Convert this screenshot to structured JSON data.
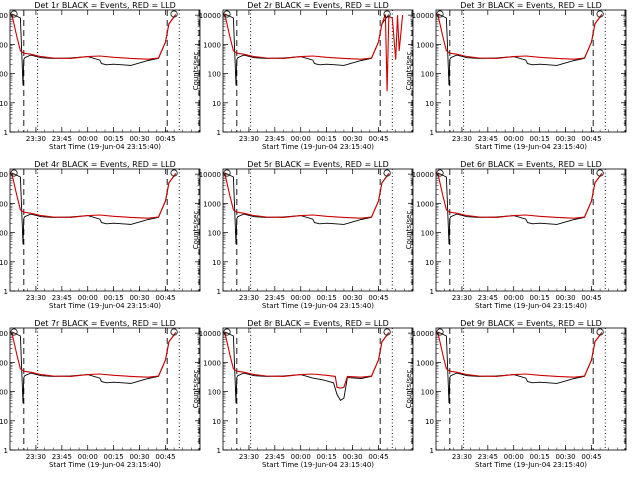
{
  "figure": {
    "xlabel": "Start Time (19-Jun-04 23:15:40)",
    "ylabel": "Counts/sec",
    "xtick_labels": [
      "23:30",
      "23:45",
      "00:00",
      "00:15",
      "00:30",
      "00:45"
    ],
    "ytick_labels": [
      "1",
      "10",
      "100",
      "1000",
      "10000"
    ],
    "colors": {
      "events": "#000000",
      "lld": "#cc0000",
      "background": "#ffffff"
    }
  },
  "chart_data": [
    {
      "type": "line",
      "title": "Det 1r BLACK = Events, RED = LLD",
      "xlabel": "Start Time (19-Jun-04 23:15:40)",
      "ylabel": "Counts/sec",
      "x_unit": "minutes since 23:15:40",
      "xlim": [
        0,
        110
      ],
      "ylim": [
        1,
        15000
      ],
      "y_scale": "log",
      "series": [
        {
          "name": "Events",
          "color": "#000000",
          "x": [
            1,
            6,
            7.5,
            8,
            8.5,
            12,
            18,
            25,
            35,
            45,
            52,
            53,
            56,
            60,
            65,
            70,
            80,
            86,
            90,
            92,
            96
          ],
          "y": [
            11000,
            8000,
            40,
            300,
            350,
            430,
            350,
            330,
            340,
            380,
            290,
            220,
            200,
            210,
            200,
            190,
            280,
            330,
            1200,
            5000,
            10500
          ]
        },
        {
          "name": "LLD",
          "color": "#cc0000",
          "x": [
            1,
            4,
            6,
            8,
            12,
            18,
            25,
            35,
            45,
            52,
            60,
            70,
            80,
            86,
            90,
            92,
            96
          ],
          "y": [
            11000,
            1800,
            600,
            500,
            460,
            380,
            340,
            330,
            380,
            400,
            360,
            330,
            310,
            340,
            1200,
            5000,
            10500
          ]
        }
      ],
      "vlines_dashed": [
        8,
        91,
        110
      ],
      "vlines_dotted": [
        16,
        98
      ]
    },
    {
      "type": "line",
      "title": "Det 2r BLACK = Events, RED = LLD",
      "xlabel": "Start Time (19-Jun-04 23:15:40)",
      "ylabel": "Counts/sec",
      "x_unit": "minutes since 23:15:40",
      "xlim": [
        0,
        110
      ],
      "ylim": [
        1,
        15000
      ],
      "y_scale": "log",
      "series": [
        {
          "name": "Events",
          "color": "#000000",
          "x": [
            1,
            6,
            7.5,
            8,
            8.5,
            12,
            18,
            25,
            35,
            45,
            52,
            53,
            56,
            60,
            65,
            70,
            80,
            86,
            90,
            92,
            96
          ],
          "y": [
            11000,
            8000,
            40,
            300,
            350,
            430,
            350,
            330,
            340,
            380,
            290,
            220,
            200,
            210,
            200,
            190,
            280,
            330,
            1200,
            5000,
            10500
          ]
        },
        {
          "name": "LLD",
          "color": "#cc0000",
          "x": [
            1,
            4,
            6,
            8,
            12,
            18,
            25,
            35,
            45,
            52,
            60,
            70,
            80,
            86,
            90,
            92,
            94,
            95,
            96,
            98,
            100,
            101,
            102,
            104
          ],
          "y": [
            11000,
            1800,
            600,
            500,
            460,
            380,
            340,
            330,
            380,
            400,
            360,
            330,
            310,
            340,
            1200,
            5000,
            10500,
            25,
            9000,
            8000,
            300,
            10000,
            600,
            10000
          ]
        }
      ],
      "vlines_dashed": [
        8,
        91,
        110
      ],
      "vlines_dotted": [
        16,
        98
      ]
    },
    {
      "type": "line",
      "title": "Det 3r BLACK = Events, RED = LLD",
      "xlabel": "Start Time (19-Jun-04 23:15:40)",
      "ylabel": "Counts/sec",
      "x_unit": "minutes since 23:15:40",
      "xlim": [
        0,
        110
      ],
      "ylim": [
        1,
        15000
      ],
      "y_scale": "log",
      "series": [
        {
          "name": "Events",
          "color": "#000000",
          "x": [
            1,
            6,
            7.5,
            8,
            8.5,
            12,
            18,
            25,
            35,
            45,
            52,
            53,
            56,
            60,
            65,
            70,
            80,
            86,
            90,
            92,
            96
          ],
          "y": [
            11000,
            8000,
            40,
            300,
            350,
            430,
            350,
            330,
            340,
            380,
            290,
            220,
            200,
            210,
            200,
            190,
            280,
            330,
            1200,
            5000,
            10500
          ]
        },
        {
          "name": "LLD",
          "color": "#cc0000",
          "x": [
            1,
            4,
            6,
            8,
            12,
            18,
            25,
            35,
            45,
            52,
            60,
            70,
            80,
            86,
            90,
            92,
            96
          ],
          "y": [
            11000,
            1800,
            600,
            500,
            460,
            380,
            340,
            330,
            380,
            400,
            360,
            330,
            310,
            340,
            1200,
            5000,
            10500
          ]
        }
      ],
      "vlines_dashed": [
        8,
        91,
        110
      ],
      "vlines_dotted": [
        16,
        98
      ]
    },
    {
      "type": "line",
      "title": "Det 4r BLACK = Events, RED = LLD",
      "xlabel": "Start Time (19-Jun-04 23:15:40)",
      "ylabel": "Counts/sec",
      "x_unit": "minutes since 23:15:40",
      "xlim": [
        0,
        110
      ],
      "ylim": [
        1,
        15000
      ],
      "y_scale": "log",
      "series": [
        {
          "name": "Events",
          "color": "#000000",
          "x": [
            1,
            6,
            7.5,
            8,
            8.5,
            12,
            18,
            25,
            35,
            45,
            52,
            53,
            56,
            60,
            65,
            70,
            80,
            86,
            90,
            92,
            96
          ],
          "y": [
            11000,
            8000,
            40,
            300,
            350,
            430,
            350,
            330,
            340,
            380,
            290,
            220,
            200,
            210,
            200,
            190,
            280,
            330,
            1200,
            5000,
            10500
          ]
        },
        {
          "name": "LLD",
          "color": "#cc0000",
          "x": [
            1,
            4,
            6,
            8,
            12,
            18,
            25,
            35,
            45,
            52,
            60,
            70,
            80,
            86,
            90,
            92,
            96
          ],
          "y": [
            11000,
            1800,
            600,
            500,
            460,
            380,
            340,
            330,
            380,
            400,
            360,
            330,
            310,
            340,
            1200,
            5000,
            10500
          ]
        }
      ],
      "vlines_dashed": [
        8,
        91,
        110
      ],
      "vlines_dotted": [
        16,
        98
      ]
    },
    {
      "type": "line",
      "title": "Det 5r BLACK = Events, RED = LLD",
      "xlabel": "Start Time (19-Jun-04 23:15:40)",
      "ylabel": "Counts/sec",
      "x_unit": "minutes since 23:15:40",
      "xlim": [
        0,
        110
      ],
      "ylim": [
        1,
        15000
      ],
      "y_scale": "log",
      "series": [
        {
          "name": "Events",
          "color": "#000000",
          "x": [
            1,
            6,
            7.5,
            8,
            8.5,
            12,
            18,
            25,
            35,
            45,
            52,
            53,
            56,
            60,
            65,
            70,
            80,
            86,
            90,
            92,
            96
          ],
          "y": [
            11000,
            8000,
            40,
            300,
            350,
            430,
            350,
            330,
            340,
            380,
            290,
            220,
            200,
            210,
            200,
            190,
            280,
            330,
            1200,
            5000,
            10500
          ]
        },
        {
          "name": "LLD",
          "color": "#cc0000",
          "x": [
            1,
            4,
            6,
            8,
            12,
            18,
            25,
            35,
            45,
            52,
            60,
            70,
            80,
            86,
            90,
            92,
            96
          ],
          "y": [
            11000,
            1800,
            600,
            500,
            460,
            380,
            340,
            330,
            380,
            400,
            360,
            330,
            310,
            340,
            1200,
            5000,
            10500
          ]
        }
      ],
      "vlines_dashed": [
        8,
        91,
        110
      ],
      "vlines_dotted": [
        16,
        98
      ]
    },
    {
      "type": "line",
      "title": "Det 6r BLACK = Events, RED = LLD",
      "xlabel": "Start Time (19-Jun-04 23:15:40)",
      "ylabel": "Counts/sec",
      "x_unit": "minutes since 23:15:40",
      "xlim": [
        0,
        110
      ],
      "ylim": [
        1,
        15000
      ],
      "y_scale": "log",
      "series": [
        {
          "name": "Events",
          "color": "#000000",
          "x": [
            1,
            6,
            7.5,
            8,
            8.5,
            12,
            18,
            25,
            35,
            45,
            52,
            53,
            56,
            60,
            65,
            70,
            80,
            86,
            90,
            92,
            96
          ],
          "y": [
            11000,
            8000,
            40,
            300,
            350,
            430,
            350,
            330,
            340,
            380,
            290,
            220,
            200,
            210,
            200,
            190,
            280,
            330,
            1200,
            5000,
            10500
          ]
        },
        {
          "name": "LLD",
          "color": "#cc0000",
          "x": [
            1,
            4,
            6,
            8,
            12,
            18,
            25,
            35,
            45,
            52,
            60,
            70,
            80,
            86,
            90,
            92,
            96
          ],
          "y": [
            11000,
            1800,
            600,
            500,
            460,
            380,
            340,
            330,
            380,
            400,
            360,
            330,
            310,
            340,
            1200,
            5000,
            10500
          ]
        }
      ],
      "vlines_dashed": [
        8,
        91,
        110
      ],
      "vlines_dotted": [
        16,
        98
      ]
    },
    {
      "type": "line",
      "title": "Det 7r BLACK = Events, RED = LLD",
      "xlabel": "Start Time (19-Jun-04 23:15:40)",
      "ylabel": "Counts/sec",
      "x_unit": "minutes since 23:15:40",
      "xlim": [
        0,
        110
      ],
      "ylim": [
        1,
        15000
      ],
      "y_scale": "log",
      "series": [
        {
          "name": "Events",
          "color": "#000000",
          "x": [
            1,
            6,
            7.5,
            8,
            8.5,
            12,
            18,
            25,
            35,
            45,
            52,
            53,
            56,
            60,
            65,
            70,
            80,
            86,
            90,
            92,
            96
          ],
          "y": [
            11000,
            8000,
            40,
            300,
            350,
            430,
            350,
            330,
            340,
            380,
            290,
            220,
            200,
            210,
            200,
            190,
            280,
            330,
            1200,
            5000,
            10500
          ]
        },
        {
          "name": "LLD",
          "color": "#cc0000",
          "x": [
            1,
            4,
            6,
            8,
            12,
            18,
            25,
            35,
            45,
            52,
            60,
            70,
            80,
            86,
            90,
            92,
            96
          ],
          "y": [
            11000,
            1800,
            600,
            500,
            460,
            380,
            340,
            330,
            380,
            400,
            360,
            330,
            310,
            340,
            1200,
            5000,
            10500
          ]
        }
      ],
      "vlines_dashed": [
        8,
        91,
        110
      ],
      "vlines_dotted": [
        16,
        98
      ]
    },
    {
      "type": "line",
      "title": "Det 8r BLACK = Events, RED = LLD",
      "xlabel": "Start Time (19-Jun-04 23:15:40)",
      "ylabel": "Counts/sec",
      "x_unit": "minutes since 23:15:40",
      "xlim": [
        0,
        110
      ],
      "ylim": [
        1,
        15000
      ],
      "y_scale": "log",
      "series": [
        {
          "name": "Events",
          "color": "#000000",
          "x": [
            1,
            6,
            7.5,
            8,
            8.5,
            12,
            18,
            25,
            35,
            45,
            52,
            58,
            64,
            66,
            68,
            70,
            72,
            80,
            86,
            90,
            92,
            96
          ],
          "y": [
            11000,
            8000,
            40,
            300,
            350,
            430,
            350,
            330,
            340,
            380,
            290,
            250,
            200,
            80,
            50,
            60,
            300,
            280,
            330,
            1200,
            5000,
            10500
          ]
        },
        {
          "name": "LLD",
          "color": "#cc0000",
          "x": [
            1,
            4,
            6,
            8,
            12,
            18,
            25,
            35,
            45,
            52,
            60,
            65,
            66,
            68,
            70,
            72,
            80,
            86,
            90,
            92,
            96
          ],
          "y": [
            11000,
            1800,
            600,
            500,
            460,
            380,
            340,
            330,
            380,
            400,
            360,
            330,
            140,
            130,
            140,
            330,
            310,
            340,
            1200,
            5000,
            10500
          ]
        }
      ],
      "vlines_dashed": [
        8,
        91,
        110
      ],
      "vlines_dotted": [
        16,
        98
      ]
    },
    {
      "type": "line",
      "title": "Det 9r BLACK = Events, RED = LLD",
      "xlabel": "Start Time (19-Jun-04 23:15:40)",
      "ylabel": "Counts/sec",
      "x_unit": "minutes since 23:15:40",
      "xlim": [
        0,
        110
      ],
      "ylim": [
        1,
        15000
      ],
      "y_scale": "log",
      "series": [
        {
          "name": "Events",
          "color": "#000000",
          "x": [
            1,
            6,
            7.5,
            8,
            8.5,
            12,
            18,
            25,
            35,
            45,
            52,
            53,
            56,
            60,
            65,
            70,
            80,
            86,
            90,
            92,
            96
          ],
          "y": [
            11000,
            8000,
            40,
            300,
            350,
            430,
            350,
            330,
            340,
            380,
            290,
            220,
            200,
            210,
            200,
            190,
            280,
            330,
            1200,
            5000,
            10500
          ]
        },
        {
          "name": "LLD",
          "color": "#cc0000",
          "x": [
            1,
            4,
            6,
            8,
            12,
            18,
            25,
            35,
            45,
            52,
            60,
            70,
            80,
            86,
            90,
            92,
            96
          ],
          "y": [
            11000,
            1800,
            600,
            500,
            460,
            380,
            340,
            330,
            380,
            400,
            360,
            330,
            310,
            340,
            1200,
            5000,
            10500
          ]
        }
      ],
      "vlines_dashed": [
        8,
        91,
        110
      ],
      "vlines_dotted": [
        16,
        98
      ]
    }
  ]
}
